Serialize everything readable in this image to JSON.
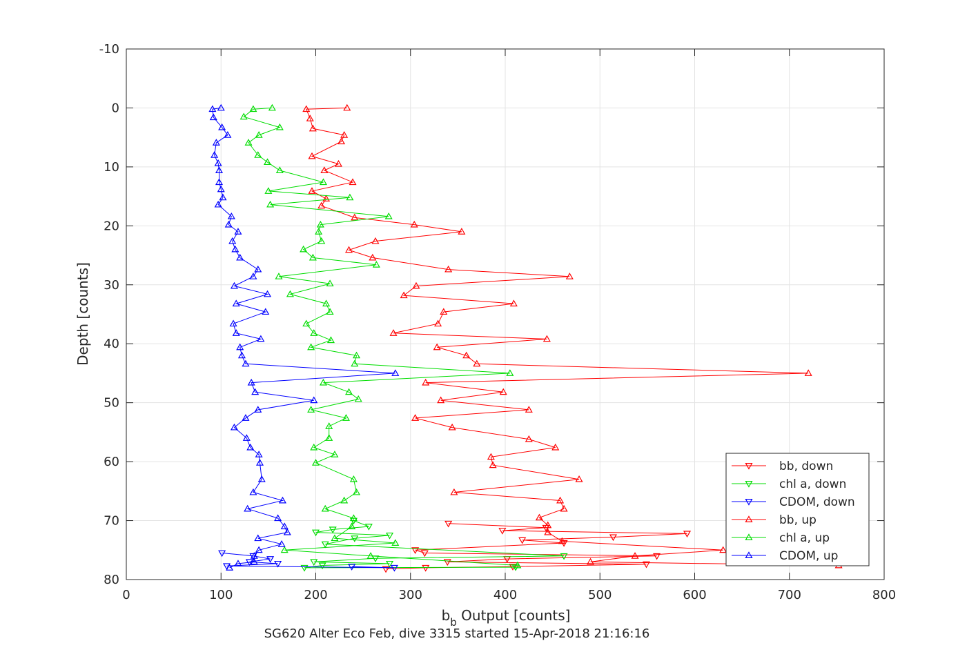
{
  "chart_data": {
    "type": "line",
    "title": "",
    "xlabel_main": "b",
    "xlabel_sub": "b",
    "xlabel_rest": " Output [counts]",
    "ylabel": "Depth [counts]",
    "footer": "SG620 Alter Eco Feb, dive 3315 started 15-Apr-2018 21:16:16",
    "xlim": [
      0,
      800
    ],
    "ylim": [
      -10,
      80
    ],
    "y_reversed": true,
    "grid": true,
    "legend_position": "bottom-right",
    "x_ticks": [
      "0",
      "100",
      "200",
      "300",
      "400",
      "500",
      "600",
      "700",
      "800"
    ],
    "y_ticks": [
      "-10",
      "0",
      "10",
      "20",
      "30",
      "40",
      "50",
      "60",
      "70",
      "80"
    ],
    "x_tick_values": [
      0,
      100,
      200,
      300,
      400,
      500,
      600,
      700,
      800
    ],
    "y_tick_values": [
      -10,
      0,
      10,
      20,
      30,
      40,
      50,
      60,
      70,
      80
    ],
    "series": [
      {
        "name": "bb, down",
        "color": "#ff0000",
        "marker": "triangle-down",
        "points": [
          [
            340,
            70.5
          ],
          [
            443,
            71.2
          ],
          [
            397,
            71.7
          ],
          [
            592,
            72.2
          ],
          [
            514,
            72.8
          ],
          [
            418,
            73.3
          ],
          [
            462,
            73.8
          ],
          [
            305,
            75.0
          ],
          [
            315,
            75.5
          ],
          [
            560,
            76.0
          ],
          [
            402,
            76.5
          ],
          [
            339,
            77.0
          ],
          [
            549,
            77.4
          ],
          [
            408,
            77.8
          ],
          [
            316,
            78.0
          ],
          [
            274,
            78.2
          ]
        ]
      },
      {
        "name": "chl a, down",
        "color": "#00dd00",
        "marker": "triangle-down",
        "points": [
          [
            240,
            70.0
          ],
          [
            256,
            71.0
          ],
          [
            218,
            71.5
          ],
          [
            200,
            72.0
          ],
          [
            278,
            72.5
          ],
          [
            241,
            73.0
          ],
          [
            210,
            74.0
          ],
          [
            462,
            76.0
          ],
          [
            263,
            76.4
          ],
          [
            198,
            77.0
          ],
          [
            278,
            77.3
          ],
          [
            207,
            77.6
          ],
          [
            188,
            78.0
          ],
          [
            411,
            77.9
          ]
        ]
      },
      {
        "name": "CDOM, down",
        "color": "#0000ff",
        "marker": "triangle-down",
        "points": [
          [
            101,
            75.5
          ],
          [
            134,
            76.0
          ],
          [
            152,
            76.5
          ],
          [
            130,
            77.0
          ],
          [
            160,
            77.3
          ],
          [
            106,
            77.7
          ],
          [
            283,
            78.0
          ],
          [
            238,
            77.8
          ]
        ]
      },
      {
        "name": "bb, up",
        "color": "#ff0000",
        "marker": "triangle-up",
        "points": [
          [
            233,
            0
          ],
          [
            190,
            0.2
          ],
          [
            194,
            1.8
          ],
          [
            197,
            3.5
          ],
          [
            230,
            4.6
          ],
          [
            227,
            5.7
          ],
          [
            196,
            8.2
          ],
          [
            224,
            9.5
          ],
          [
            209,
            10.6
          ],
          [
            239,
            12.6
          ],
          [
            196,
            14.1
          ],
          [
            211,
            15.4
          ],
          [
            206,
            16.6
          ],
          [
            241,
            18.6
          ],
          [
            304,
            19.8
          ],
          [
            354,
            21.0
          ],
          [
            263,
            22.6
          ],
          [
            235,
            24.1
          ],
          [
            260,
            25.4
          ],
          [
            340,
            27.4
          ],
          [
            468,
            28.6
          ],
          [
            306,
            30.2
          ],
          [
            293,
            31.8
          ],
          [
            409,
            33.2
          ],
          [
            335,
            34.6
          ],
          [
            329,
            36.6
          ],
          [
            282,
            38.2
          ],
          [
            444,
            39.2
          ],
          [
            328,
            40.6
          ],
          [
            359,
            42.0
          ],
          [
            370,
            43.4
          ],
          [
            720,
            45.0
          ],
          [
            316,
            46.6
          ],
          [
            398,
            48.2
          ],
          [
            332,
            49.6
          ],
          [
            425,
            51.2
          ],
          [
            305,
            52.6
          ],
          [
            344,
            54.2
          ],
          [
            425,
            56.2
          ],
          [
            453,
            57.6
          ],
          [
            385,
            59.2
          ],
          [
            387,
            60.6
          ],
          [
            478,
            63.0
          ],
          [
            346,
            65.2
          ],
          [
            458,
            66.6
          ],
          [
            462,
            68.0
          ],
          [
            436,
            69.5
          ],
          [
            445,
            70.8
          ],
          [
            445,
            72.0
          ],
          [
            460,
            73.5
          ],
          [
            630,
            75.0
          ],
          [
            537,
            76.0
          ],
          [
            490,
            77.0
          ],
          [
            752,
            77.6
          ]
        ]
      },
      {
        "name": "chl a, up",
        "color": "#00dd00",
        "marker": "triangle-up",
        "points": [
          [
            154,
            0
          ],
          [
            134,
            0.2
          ],
          [
            124,
            1.5
          ],
          [
            162,
            3.3
          ],
          [
            140,
            4.6
          ],
          [
            129,
            5.9
          ],
          [
            139,
            8.0
          ],
          [
            149,
            9.2
          ],
          [
            162,
            10.6
          ],
          [
            208,
            12.6
          ],
          [
            150,
            14.1
          ],
          [
            236,
            15.2
          ],
          [
            152,
            16.4
          ],
          [
            277,
            18.4
          ],
          [
            205,
            19.8
          ],
          [
            203,
            21.0
          ],
          [
            206,
            22.6
          ],
          [
            187,
            24.0
          ],
          [
            197,
            25.4
          ],
          [
            264,
            26.6
          ],
          [
            161,
            28.6
          ],
          [
            215,
            29.8
          ],
          [
            173,
            31.6
          ],
          [
            211,
            33.2
          ],
          [
            215,
            34.6
          ],
          [
            190,
            36.6
          ],
          [
            198,
            38.2
          ],
          [
            216,
            39.4
          ],
          [
            195,
            40.6
          ],
          [
            243,
            42.0
          ],
          [
            241,
            43.4
          ],
          [
            405,
            45.0
          ],
          [
            208,
            46.6
          ],
          [
            235,
            48.2
          ],
          [
            245,
            49.4
          ],
          [
            195,
            51.2
          ],
          [
            232,
            52.6
          ],
          [
            214,
            54.0
          ],
          [
            214,
            56.0
          ],
          [
            198,
            57.6
          ],
          [
            220,
            58.8
          ],
          [
            200,
            60.2
          ],
          [
            240,
            63.0
          ],
          [
            243,
            65.2
          ],
          [
            230,
            66.6
          ],
          [
            210,
            68.0
          ],
          [
            240,
            69.6
          ],
          [
            238,
            71.0
          ],
          [
            220,
            73.0
          ],
          [
            284,
            73.8
          ],
          [
            167,
            75.0
          ],
          [
            258,
            76.0
          ],
          [
            413,
            77.6
          ]
        ]
      },
      {
        "name": "CDOM, up",
        "color": "#0000ff",
        "marker": "triangle-up",
        "points": [
          [
            100,
            0
          ],
          [
            91,
            0.2
          ],
          [
            92,
            1.6
          ],
          [
            101,
            3.3
          ],
          [
            107,
            4.6
          ],
          [
            95,
            5.9
          ],
          [
            93,
            8.0
          ],
          [
            97,
            9.4
          ],
          [
            98,
            10.6
          ],
          [
            98,
            12.6
          ],
          [
            100,
            13.8
          ],
          [
            102,
            15.2
          ],
          [
            97,
            16.4
          ],
          [
            111,
            18.4
          ],
          [
            108,
            19.8
          ],
          [
            118,
            21.0
          ],
          [
            112,
            22.6
          ],
          [
            115,
            24.0
          ],
          [
            120,
            25.4
          ],
          [
            139,
            27.4
          ],
          [
            134,
            28.6
          ],
          [
            114,
            30.2
          ],
          [
            149,
            31.6
          ],
          [
            116,
            33.2
          ],
          [
            147,
            34.6
          ],
          [
            113,
            36.6
          ],
          [
            116,
            38.2
          ],
          [
            142,
            39.2
          ],
          [
            120,
            40.6
          ],
          [
            122,
            42.0
          ],
          [
            126,
            43.4
          ],
          [
            284,
            45.0
          ],
          [
            132,
            46.6
          ],
          [
            136,
            48.2
          ],
          [
            198,
            49.6
          ],
          [
            139,
            51.2
          ],
          [
            126,
            52.6
          ],
          [
            114,
            54.2
          ],
          [
            127,
            56.0
          ],
          [
            131,
            57.6
          ],
          [
            140,
            58.8
          ],
          [
            141,
            60.2
          ],
          [
            143,
            63.0
          ],
          [
            134,
            65.2
          ],
          [
            165,
            66.6
          ],
          [
            128,
            68.0
          ],
          [
            160,
            69.6
          ],
          [
            167,
            71.0
          ],
          [
            170,
            72.0
          ],
          [
            139,
            73.0
          ],
          [
            164,
            74.0
          ],
          [
            140,
            75.0
          ],
          [
            135,
            76.0
          ],
          [
            135,
            77.0
          ],
          [
            118,
            77.3
          ],
          [
            109,
            78.0
          ]
        ]
      }
    ]
  }
}
